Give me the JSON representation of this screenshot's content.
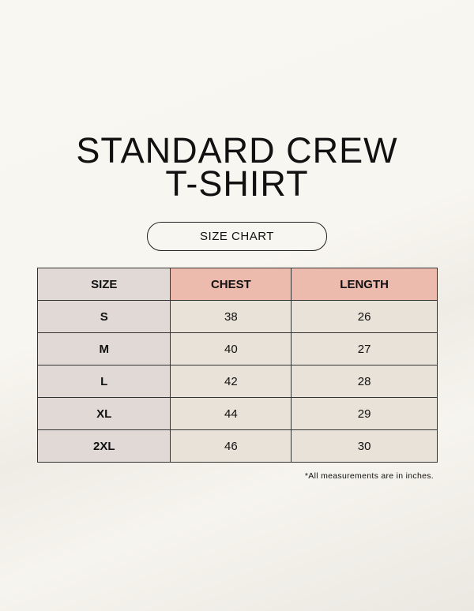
{
  "title": {
    "line1": "STANDARD CREW",
    "line2": "T-SHIRT"
  },
  "badge": "SIZE CHART",
  "table": {
    "headers": [
      "SIZE",
      "CHEST",
      "LENGTH"
    ],
    "rows": [
      [
        "S",
        "38",
        "26"
      ],
      [
        "M",
        "40",
        "27"
      ],
      [
        "L",
        "42",
        "28"
      ],
      [
        "XL",
        "44",
        "29"
      ],
      [
        "2XL",
        "46",
        "30"
      ]
    ]
  },
  "note": "*All measurements are in inches.",
  "colors": {
    "header_accent": "#edbbae",
    "size_column": "#e0d9d5",
    "cells": "#e9e2d8"
  }
}
